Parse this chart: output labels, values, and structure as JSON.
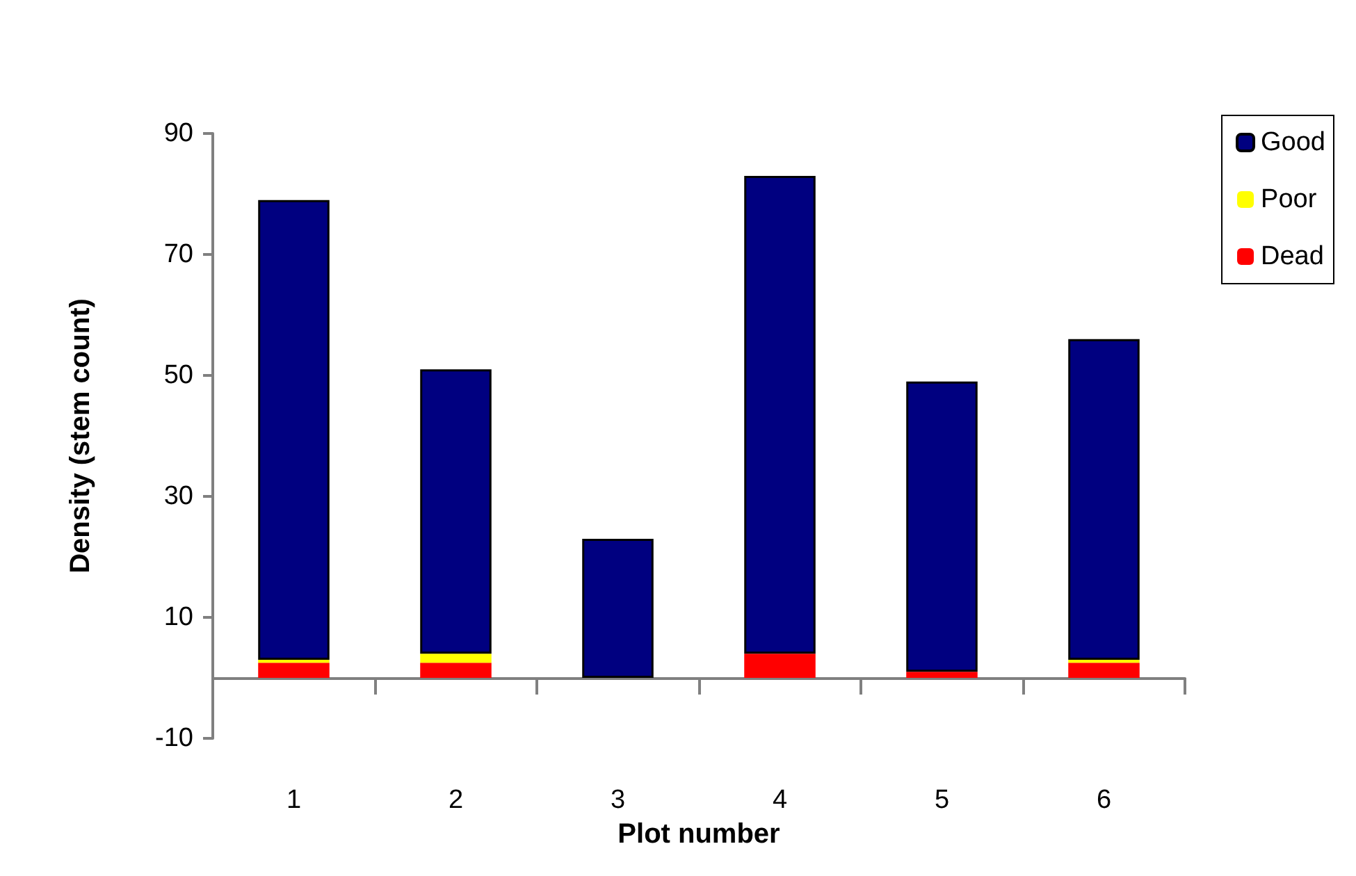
{
  "chart_data": {
    "type": "bar",
    "stacked": true,
    "xlabel": "Plot number",
    "ylabel": "Density (stem count)",
    "categories": [
      "1",
      "2",
      "3",
      "4",
      "5",
      "6"
    ],
    "series": [
      {
        "name": "Dead",
        "color": "#ff0000",
        "values": [
          2.5,
          2.5,
          0,
          4,
          1,
          2.5
        ]
      },
      {
        "name": "Poor",
        "color": "#ffff00",
        "values": [
          0.5,
          1.5,
          0,
          0,
          0,
          0.5
        ]
      },
      {
        "name": "Good",
        "color": "#000080",
        "values": [
          76,
          47,
          23,
          79,
          48,
          53
        ]
      }
    ],
    "ylim": [
      -10,
      90
    ],
    "yticks": [
      -10,
      10,
      30,
      50,
      70,
      90
    ],
    "grid": false,
    "legend": "top right"
  }
}
